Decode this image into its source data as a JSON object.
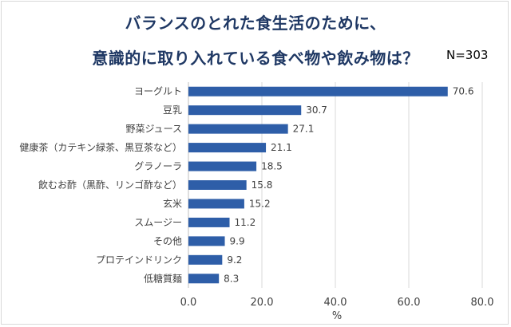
{
  "chart_title": {
    "line1": "バランスのとれた食生活のために、",
    "line2": "意識的に取り入れている食べ物や飲み物は？"
  },
  "sample_size": "N=303",
  "colors": {
    "bar": "#2e5ea8",
    "grid": "#d9d9d9",
    "title": "#1f3864",
    "text": "#404040"
  },
  "chart_data": {
    "type": "bar",
    "orientation": "horizontal",
    "title": "バランスのとれた食生活のために、意識的に取り入れている食べ物や飲み物は？",
    "xlabel": "%",
    "ylabel": "",
    "xlim": [
      0,
      80
    ],
    "xticks": [
      0,
      20,
      40,
      60,
      80
    ],
    "xtick_labels": [
      "0.0",
      "20.0",
      "40.0",
      "60.0",
      "80.0"
    ],
    "grid": "vertical",
    "categories": [
      "ヨーグルト",
      "豆乳",
      "野菜ジュース",
      "健康茶（カテキン緑茶、黒豆茶など）",
      "グラノーラ",
      "飲むお酢（黒酢、リンゴ酢など）",
      "玄米",
      "スムージー",
      "その他",
      "プロテインドリンク",
      "低糖質麺"
    ],
    "values": [
      70.6,
      30.7,
      27.1,
      21.1,
      18.5,
      15.8,
      15.2,
      11.2,
      9.9,
      9.2,
      8.3
    ]
  }
}
